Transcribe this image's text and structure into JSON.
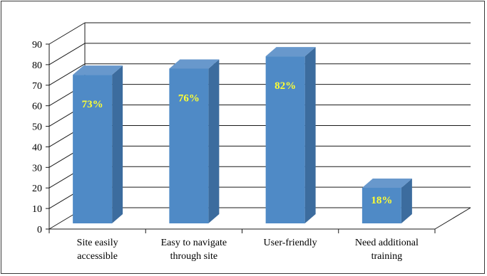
{
  "chart_data": {
    "type": "bar",
    "categories": [
      [
        "Site easily",
        "accessible"
      ],
      [
        "Easy to navigate",
        "through site"
      ],
      [
        "User-friendly"
      ],
      [
        "Need additional",
        "training"
      ]
    ],
    "values": [
      73,
      76,
      82,
      18
    ],
    "data_labels": [
      "73%",
      "76%",
      "82%",
      "18%"
    ],
    "yticks": [
      "0",
      "10",
      "20",
      "30",
      "40",
      "50",
      "60",
      "70",
      "80",
      "90"
    ],
    "ylim": [
      0,
      90
    ],
    "grid": true,
    "three_d": true,
    "colors": {
      "bar_front": "#4f8ac6",
      "bar_side": "#3c6c9e",
      "bar_top": "#6898cc",
      "data_label": "#ffff33",
      "grid": "#1a1a1a"
    }
  }
}
